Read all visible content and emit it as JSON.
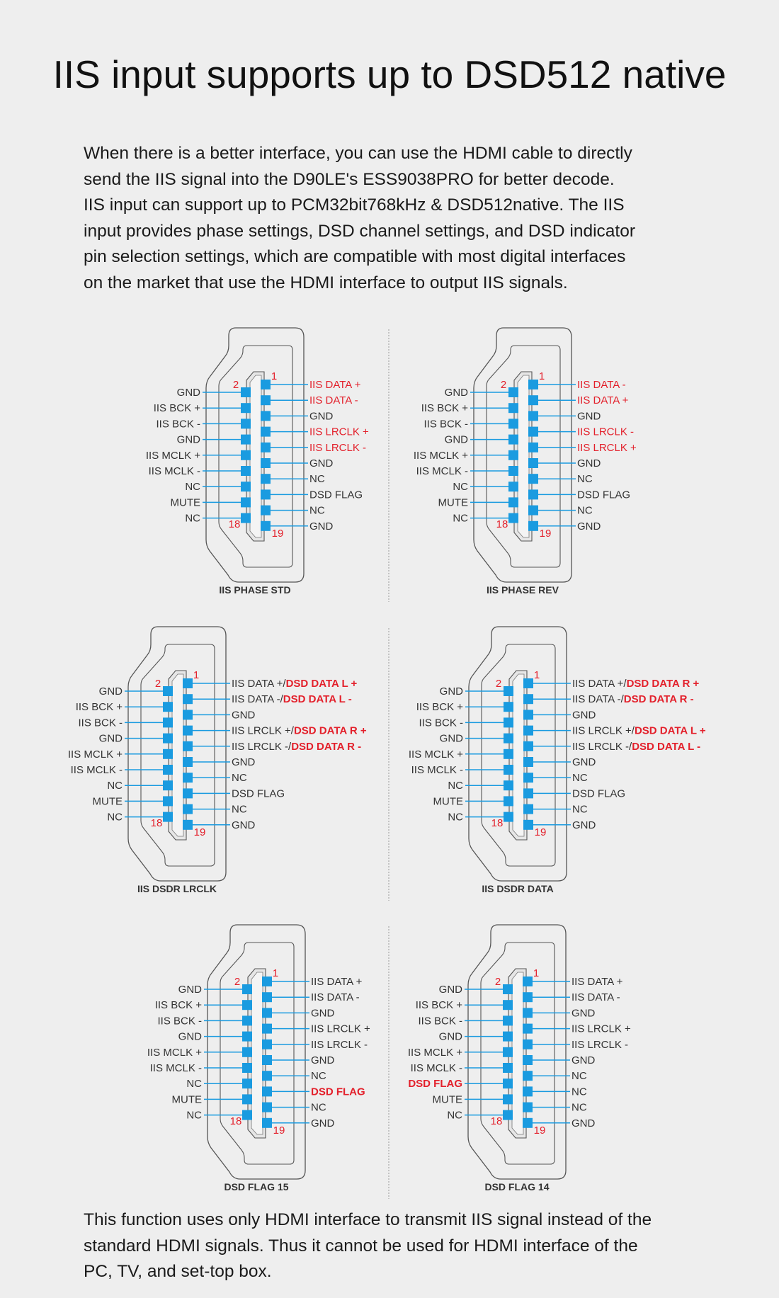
{
  "title": "IIS input supports up to DSD512 native",
  "intro_lines": [
    "When there is a better interface, you can use the HDMI cable to directly",
    "send the IIS signal into the D90LE's ESS9038PRO for better decode.",
    "IIS input can support up to PCM32bit768kHz & DSD512native. The IIS",
    "input provides phase settings, DSD channel settings, and DSD indicator",
    "pin selection settings, which are compatible with most digital interfaces",
    "on the market that use the HDMI interface to output IIS signals."
  ],
  "outro_lines": [
    "This function uses only HDMI interface to transmit IIS signal instead of the",
    "standard HDMI signals. Thus it cannot be used for HDMI interface of the",
    "PC, TV, and set-top box."
  ],
  "colors": {
    "background": "#eeeeee",
    "highlight": "#e3202b",
    "pin": "#1a9be0",
    "outline": "#555555"
  },
  "pin_numbers": {
    "first_odd": "1",
    "first_even": "2",
    "last_even": "18",
    "last_odd": "19"
  },
  "diagrams": [
    {
      "caption": "IIS PHASE STD",
      "left": [
        [
          {
            "t": "GND"
          }
        ],
        [
          {
            "t": "IIS BCK +"
          }
        ],
        [
          {
            "t": "IIS BCK -"
          }
        ],
        [
          {
            "t": "GND"
          }
        ],
        [
          {
            "t": "IIS MCLK +"
          }
        ],
        [
          {
            "t": "IIS MCLK -"
          }
        ],
        [
          {
            "t": "NC"
          }
        ],
        [
          {
            "t": "MUTE"
          }
        ],
        [
          {
            "t": "NC"
          }
        ]
      ],
      "right": [
        [
          {
            "t": "IIS DATA +",
            "s": "red"
          }
        ],
        [
          {
            "t": "IIS DATA -",
            "s": "red"
          }
        ],
        [
          {
            "t": "GND"
          }
        ],
        [
          {
            "t": "IIS LRCLK +",
            "s": "red"
          }
        ],
        [
          {
            "t": "IIS LRCLK -",
            "s": "red"
          }
        ],
        [
          {
            "t": "GND"
          }
        ],
        [
          {
            "t": "NC"
          }
        ],
        [
          {
            "t": "DSD FLAG"
          }
        ],
        [
          {
            "t": "NC"
          }
        ],
        [
          {
            "t": "GND"
          }
        ]
      ]
    },
    {
      "caption": "IIS PHASE REV",
      "left": [
        [
          {
            "t": "GND"
          }
        ],
        [
          {
            "t": "IIS BCK +"
          }
        ],
        [
          {
            "t": "IIS BCK -"
          }
        ],
        [
          {
            "t": "GND"
          }
        ],
        [
          {
            "t": "IIS MCLK +"
          }
        ],
        [
          {
            "t": "IIS MCLK -"
          }
        ],
        [
          {
            "t": "NC"
          }
        ],
        [
          {
            "t": "MUTE"
          }
        ],
        [
          {
            "t": "NC"
          }
        ]
      ],
      "right": [
        [
          {
            "t": "IIS DATA -",
            "s": "red"
          }
        ],
        [
          {
            "t": "IIS DATA +",
            "s": "red"
          }
        ],
        [
          {
            "t": "GND"
          }
        ],
        [
          {
            "t": "IIS LRCLK -",
            "s": "red"
          }
        ],
        [
          {
            "t": "IIS LRCLK +",
            "s": "red"
          }
        ],
        [
          {
            "t": "GND"
          }
        ],
        [
          {
            "t": "NC"
          }
        ],
        [
          {
            "t": "DSD FLAG"
          }
        ],
        [
          {
            "t": "NC"
          }
        ],
        [
          {
            "t": "GND"
          }
        ]
      ]
    },
    {
      "caption": "IIS DSDR LRCLK",
      "left": [
        [
          {
            "t": "GND"
          }
        ],
        [
          {
            "t": "IIS BCK +"
          }
        ],
        [
          {
            "t": "IIS BCK -"
          }
        ],
        [
          {
            "t": "GND"
          }
        ],
        [
          {
            "t": "IIS MCLK +"
          }
        ],
        [
          {
            "t": "IIS MCLK -"
          }
        ],
        [
          {
            "t": "NC"
          }
        ],
        [
          {
            "t": "MUTE"
          }
        ],
        [
          {
            "t": "NC"
          }
        ]
      ],
      "right": [
        [
          {
            "t": "IIS DATA +/"
          },
          {
            "t": "DSD DATA L +",
            "s": "redb"
          }
        ],
        [
          {
            "t": "IIS DATA -/"
          },
          {
            "t": "DSD DATA L -",
            "s": "redb"
          }
        ],
        [
          {
            "t": "GND"
          }
        ],
        [
          {
            "t": "IIS LRCLK +/"
          },
          {
            "t": "DSD DATA R +",
            "s": "redb"
          }
        ],
        [
          {
            "t": "IIS LRCLK -/"
          },
          {
            "t": "DSD DATA R -",
            "s": "redb"
          }
        ],
        [
          {
            "t": "GND"
          }
        ],
        [
          {
            "t": "NC"
          }
        ],
        [
          {
            "t": "DSD FLAG"
          }
        ],
        [
          {
            "t": "NC"
          }
        ],
        [
          {
            "t": "GND"
          }
        ]
      ]
    },
    {
      "caption": "IIS DSDR DATA",
      "left": [
        [
          {
            "t": "GND"
          }
        ],
        [
          {
            "t": "IIS BCK +"
          }
        ],
        [
          {
            "t": "IIS BCK -"
          }
        ],
        [
          {
            "t": "GND"
          }
        ],
        [
          {
            "t": "IIS MCLK +"
          }
        ],
        [
          {
            "t": "IIS MCLK -"
          }
        ],
        [
          {
            "t": "NC"
          }
        ],
        [
          {
            "t": "MUTE"
          }
        ],
        [
          {
            "t": "NC"
          }
        ]
      ],
      "right": [
        [
          {
            "t": "IIS DATA +/"
          },
          {
            "t": "DSD DATA R +",
            "s": "redb"
          }
        ],
        [
          {
            "t": "IIS DATA -/"
          },
          {
            "t": "DSD DATA R -",
            "s": "redb"
          }
        ],
        [
          {
            "t": "GND"
          }
        ],
        [
          {
            "t": "IIS LRCLK +/"
          },
          {
            "t": "DSD DATA L +",
            "s": "redb"
          }
        ],
        [
          {
            "t": "IIS LRCLK -/"
          },
          {
            "t": "DSD DATA L -",
            "s": "redb"
          }
        ],
        [
          {
            "t": "GND"
          }
        ],
        [
          {
            "t": "NC"
          }
        ],
        [
          {
            "t": "DSD FLAG"
          }
        ],
        [
          {
            "t": "NC"
          }
        ],
        [
          {
            "t": "GND"
          }
        ]
      ]
    },
    {
      "caption": "DSD FLAG 15",
      "left": [
        [
          {
            "t": "GND"
          }
        ],
        [
          {
            "t": "IIS BCK +"
          }
        ],
        [
          {
            "t": "IIS BCK -"
          }
        ],
        [
          {
            "t": "GND"
          }
        ],
        [
          {
            "t": "IIS MCLK +"
          }
        ],
        [
          {
            "t": "IIS MCLK -"
          }
        ],
        [
          {
            "t": "NC"
          }
        ],
        [
          {
            "t": "MUTE"
          }
        ],
        [
          {
            "t": "NC"
          }
        ]
      ],
      "right": [
        [
          {
            "t": "IIS DATA +"
          }
        ],
        [
          {
            "t": "IIS DATA -"
          }
        ],
        [
          {
            "t": "GND"
          }
        ],
        [
          {
            "t": "IIS LRCLK +"
          }
        ],
        [
          {
            "t": "IIS LRCLK -"
          }
        ],
        [
          {
            "t": "GND"
          }
        ],
        [
          {
            "t": "NC"
          }
        ],
        [
          {
            "t": "DSD FLAG",
            "s": "redb"
          }
        ],
        [
          {
            "t": "NC"
          }
        ],
        [
          {
            "t": "GND"
          }
        ]
      ]
    },
    {
      "caption": "DSD FLAG 14",
      "left": [
        [
          {
            "t": "GND"
          }
        ],
        [
          {
            "t": "IIS BCK +"
          }
        ],
        [
          {
            "t": "IIS BCK -"
          }
        ],
        [
          {
            "t": "GND"
          }
        ],
        [
          {
            "t": "IIS MCLK +"
          }
        ],
        [
          {
            "t": "IIS MCLK -"
          }
        ],
        [
          {
            "t": "DSD FLAG",
            "s": "redb"
          }
        ],
        [
          {
            "t": "MUTE"
          }
        ],
        [
          {
            "t": "NC"
          }
        ]
      ],
      "right": [
        [
          {
            "t": "IIS DATA +"
          }
        ],
        [
          {
            "t": "IIS DATA -"
          }
        ],
        [
          {
            "t": "GND"
          }
        ],
        [
          {
            "t": "IIS LRCLK +"
          }
        ],
        [
          {
            "t": "IIS LRCLK -"
          }
        ],
        [
          {
            "t": "GND"
          }
        ],
        [
          {
            "t": "NC"
          }
        ],
        [
          {
            "t": "NC"
          }
        ],
        [
          {
            "t": "NC"
          }
        ],
        [
          {
            "t": "GND"
          }
        ]
      ]
    }
  ]
}
